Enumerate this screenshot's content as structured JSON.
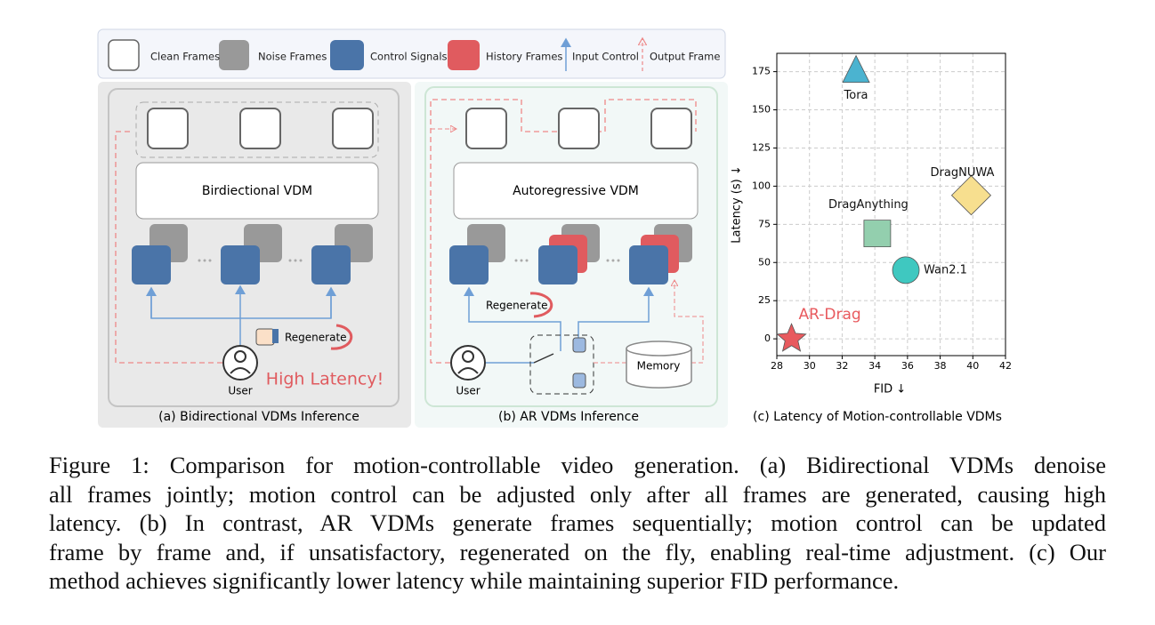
{
  "legend": {
    "items": [
      "Clean Frames",
      "Noise Frames",
      "Control Signals",
      "History Frames",
      "Input Control",
      "Output Frame"
    ]
  },
  "panel_a": {
    "model": "Birdiectional VDM",
    "action": "Regenerate",
    "user": "User",
    "warning": "High Latency!",
    "caption": "(a) Bidirectional VDMs Inference"
  },
  "panel_b": {
    "model": "Autoregressive VDM",
    "action": "Regenerate",
    "user": "User",
    "memory": "Memory",
    "caption": "(b)  AR VDMs Inference"
  },
  "chart_data": {
    "type": "scatter",
    "caption": "(c) Latency of Motion-controllable VDMs",
    "xlabel": "FID ↓",
    "ylabel": "Latency (s) ↓",
    "xlim": [
      28,
      42
    ],
    "ylim": [
      -11,
      187
    ],
    "xticks": [
      28,
      30,
      32,
      34,
      36,
      38,
      40,
      42
    ],
    "yticks": [
      0,
      25,
      50,
      75,
      100,
      125,
      150,
      175
    ],
    "grid": true,
    "points": [
      {
        "name": "Tora",
        "x": 32.85,
        "y": 175,
        "marker": "triangle",
        "color": "#4bb3d0"
      },
      {
        "name": "DragNUWA",
        "x": 39.9,
        "y": 94,
        "marker": "diamond",
        "color": "#f7df8f"
      },
      {
        "name": "DragAnything",
        "x": 34.15,
        "y": 69,
        "marker": "square",
        "color": "#93cfae"
      },
      {
        "name": "Wan2.1",
        "x": 35.9,
        "y": 45,
        "marker": "circle",
        "color": "#3fc8c0"
      },
      {
        "name": "AR-Drag",
        "x": 28.9,
        "y": 0,
        "marker": "star",
        "color": "#e85a5e"
      }
    ]
  },
  "figure_caption": {
    "lines": [
      "Figure 1: Comparison for motion-controllable video generation. (a) Bidirectional VDMs denoise",
      "all frames jointly; motion control can be adjusted only after all frames are generated, causing high",
      "latency. (b) In contrast, AR VDMs generate frames sequentially; motion control can be updated",
      "frame by frame and, if unsatisfactory, regenerated on the fly, enabling real-time adjustment. (c) Our",
      "method achieves significantly lower latency while maintaining superior FID performance."
    ]
  }
}
